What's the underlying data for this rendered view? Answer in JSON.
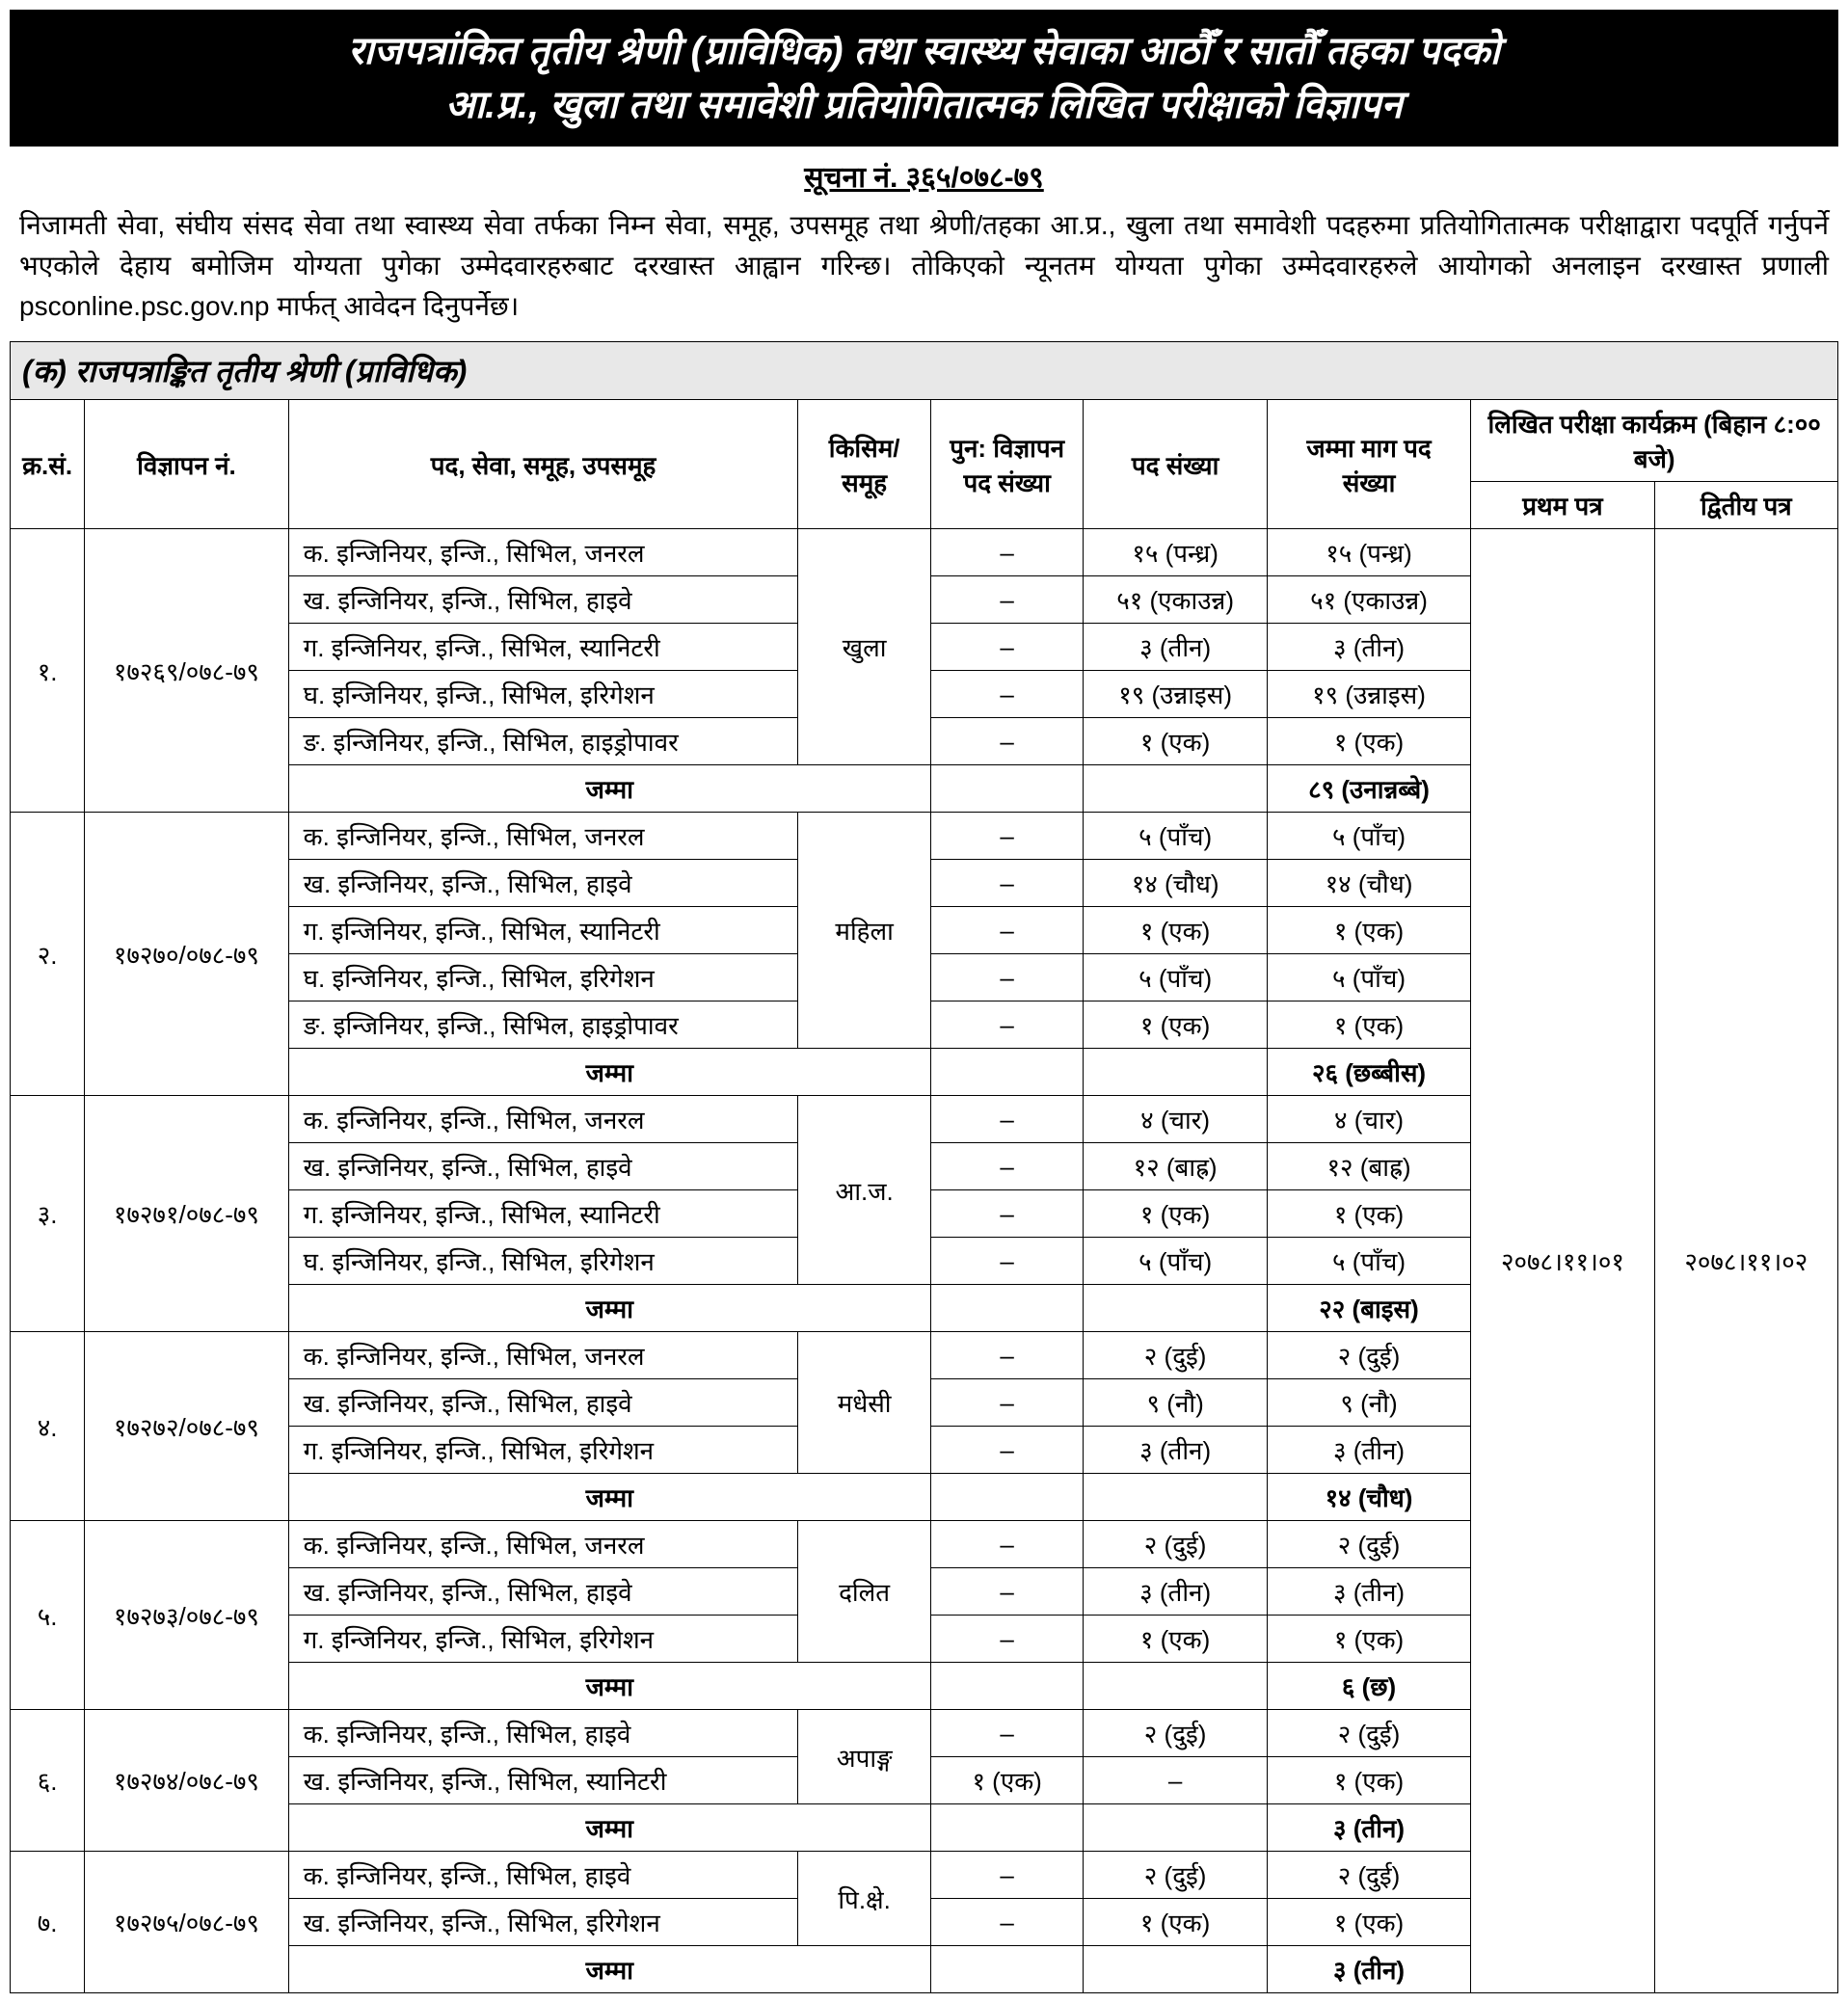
{
  "header": {
    "line1": "राजपत्रांकित तृतीय श्रेणी (प्राविधिक) तथा स्वास्थ्य सेवाका आठौँ र सातौँ तहका पदको",
    "line2": "आ.प्र., खुला तथा समावेशी प्रतियोगितात्मक लिखित परीक्षाको विज्ञापन"
  },
  "notice_num": "सूचना नं. ३६५/०७८-७९",
  "intro": "निजामती सेवा, संघीय संसद सेवा तथा स्वास्थ्य सेवा तर्फका निम्न सेवा, समूह, उपसमूह तथा श्रेणी/तहका आ.प्र., खुला तथा समावेशी पदहरुमा प्रतियोगितात्मक परीक्षाद्वारा पदपूर्ति गर्नुपर्ने भएकोले देहाय बमोजिम योग्यता पुगेका उम्मेदवारहरुबाट दरखास्त आह्वान गरिन्छ। तोकिएको न्यूनतम योग्यता पुगेका उम्मेदवारहरुले आयोगको अनलाइन दरखास्त प्रणाली psconline.psc.gov.np मार्फत् आवेदन दिनुपर्नेछ।",
  "section_title": "(क) राजपत्राङ्कित तृतीय श्रेणी (प्राविधिक)",
  "columns": {
    "sn": "क्र.सं.",
    "adv": "विज्ञापन नं.",
    "post": "पद, सेवा, समूह, उपसमूह",
    "kind": "किसिम/ समूह",
    "readv": "पुन: विज्ञापन पद संख्या",
    "posts": "पद संख्या",
    "total": "जम्मा माग पद संख्या",
    "exam": "लिखित परीक्षा कार्यक्रम (बिहान ८:०० बजे)",
    "p1": "प्रथम पत्र",
    "p2": "द्वितीय पत्र"
  },
  "exam_dates": {
    "p1": "२०७८।११।०१",
    "p2": "२०७८।११।०२"
  },
  "jamma": "जम्मा",
  "groups": [
    {
      "sn": "१.",
      "adv": "१७२६९/०७८-७९",
      "kind": "खुला",
      "rows": [
        {
          "post": "क. इन्जिनियर, इन्जि., सिभिल, जनरल",
          "re": "–",
          "num": "१५ (पन्ध्र)",
          "tot": "१५ (पन्ध्र)"
        },
        {
          "post": "ख. इन्जिनियर, इन्जि., सिभिल, हाइवे",
          "re": "–",
          "num": "५१ (एकाउन्न)",
          "tot": "५१ (एकाउन्न)"
        },
        {
          "post": "ग. इन्जिनियर, इन्जि., सिभिल, स्यानिटरी",
          "re": "–",
          "num": "३ (तीन)",
          "tot": "३ (तीन)"
        },
        {
          "post": "घ. इन्जिनियर, इन्जि., सिभिल, इरिगेशन",
          "re": "–",
          "num": "१९ (उन्नाइस)",
          "tot": "१९ (उन्नाइस)"
        },
        {
          "post": "ङ. इन्जिनियर, इन्जि., सिभिल, हाइड्रोपावर",
          "re": "–",
          "num": "१ (एक)",
          "tot": "१ (एक)"
        }
      ],
      "total": "८९ (उनान्नब्बे)"
    },
    {
      "sn": "२.",
      "adv": "१७२७०/०७८-७९",
      "kind": "महिला",
      "rows": [
        {
          "post": "क. इन्जिनियर, इन्जि., सिभिल, जनरल",
          "re": "–",
          "num": "५ (पाँच)",
          "tot": "५ (पाँच)"
        },
        {
          "post": "ख. इन्जिनियर, इन्जि., सिभिल, हाइवे",
          "re": "–",
          "num": "१४ (चौध)",
          "tot": "१४ (चौध)"
        },
        {
          "post": "ग. इन्जिनियर, इन्जि., सिभिल, स्यानिटरी",
          "re": "–",
          "num": "१ (एक)",
          "tot": "१ (एक)"
        },
        {
          "post": "घ. इन्जिनियर, इन्जि., सिभिल, इरिगेशन",
          "re": "–",
          "num": "५ (पाँच)",
          "tot": "५ (पाँच)"
        },
        {
          "post": "ङ. इन्जिनियर, इन्जि., सिभिल, हाइड्रोपावर",
          "re": "–",
          "num": "१ (एक)",
          "tot": "१ (एक)"
        }
      ],
      "total": "२६ (छब्बीस)"
    },
    {
      "sn": "३.",
      "adv": "१७२७१/०७८-७९",
      "kind": "आ.ज.",
      "rows": [
        {
          "post": "क. इन्जिनियर, इन्जि., सिभिल, जनरल",
          "re": "–",
          "num": "४ (चार)",
          "tot": "४ (चार)"
        },
        {
          "post": "ख. इन्जिनियर, इन्जि., सिभिल, हाइवे",
          "re": "–",
          "num": "१२ (बाह्र)",
          "tot": "१२ (बाह्र)"
        },
        {
          "post": "ग. इन्जिनियर, इन्जि., सिभिल, स्यानिटरी",
          "re": "–",
          "num": "१ (एक)",
          "tot": "१ (एक)"
        },
        {
          "post": "घ. इन्जिनियर, इन्जि., सिभिल, इरिगेशन",
          "re": "–",
          "num": "५ (पाँच)",
          "tot": "५ (पाँच)"
        }
      ],
      "total": "२२ (बाइस)"
    },
    {
      "sn": "४.",
      "adv": "१७२७२/०७८-७९",
      "kind": "मधेसी",
      "rows": [
        {
          "post": "क. इन्जिनियर, इन्जि., सिभिल, जनरल",
          "re": "–",
          "num": "२ (दुई)",
          "tot": "२ (दुई)"
        },
        {
          "post": "ख. इन्जिनियर, इन्जि., सिभिल, हाइवे",
          "re": "–",
          "num": "९ (नौ)",
          "tot": "९ (नौ)"
        },
        {
          "post": "ग. इन्जिनियर, इन्जि., सिभिल, इरिगेशन",
          "re": "–",
          "num": "३ (तीन)",
          "tot": "३ (तीन)"
        }
      ],
      "total": "१४ (चौध)"
    },
    {
      "sn": "५.",
      "adv": "१७२७३/०७८-७९",
      "kind": "दलित",
      "rows": [
        {
          "post": "क. इन्जिनियर, इन्जि., सिभिल, जनरल",
          "re": "–",
          "num": "२ (दुई)",
          "tot": "२ (दुई)"
        },
        {
          "post": "ख. इन्जिनियर, इन्जि., सिभिल, हाइवे",
          "re": "–",
          "num": "३ (तीन)",
          "tot": "३ (तीन)"
        },
        {
          "post": "ग. इन्जिनियर, इन्जि., सिभिल, इरिगेशन",
          "re": "–",
          "num": "१ (एक)",
          "tot": "१ (एक)"
        }
      ],
      "total": "६ (छ)"
    },
    {
      "sn": "६.",
      "adv": "१७२७४/०७८-७९",
      "kind": "अपाङ्ग",
      "rows": [
        {
          "post": "क. इन्जिनियर, इन्जि., सिभिल, हाइवे",
          "re": "–",
          "num": "२ (दुई)",
          "tot": "२ (दुई)"
        },
        {
          "post": "ख. इन्जिनियर, इन्जि., सिभिल, स्यानिटरी",
          "re": "१ (एक)",
          "num": "–",
          "tot": "१ (एक)"
        }
      ],
      "total": "३ (तीन)"
    },
    {
      "sn": "७.",
      "adv": "१७२७५/०७८-७९",
      "kind": "पि.क्षे.",
      "rows": [
        {
          "post": "क. इन्जिनियर, इन्जि., सिभिल, हाइवे",
          "re": "–",
          "num": "२ (दुई)",
          "tot": "२ (दुई)"
        },
        {
          "post": "ख. इन्जिनियर, इन्जि., सिभिल, इरिगेशन",
          "re": "–",
          "num": "१ (एक)",
          "tot": "१ (एक)"
        }
      ],
      "total": "३ (तीन)"
    }
  ]
}
